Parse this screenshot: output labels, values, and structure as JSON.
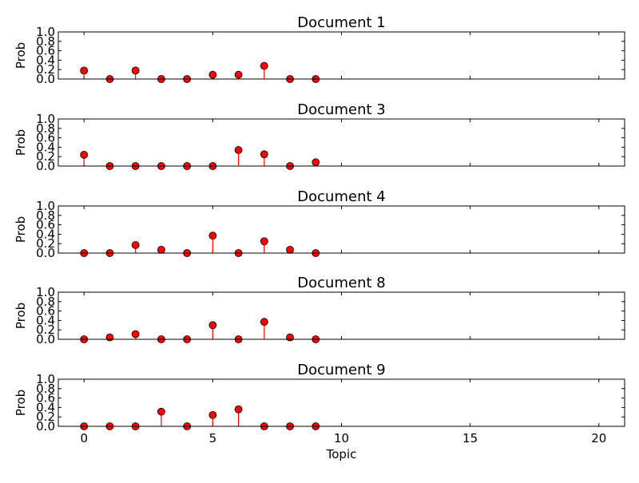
{
  "figure": {
    "xlabel": "Topic",
    "ylabel": "Prob"
  },
  "colors": {
    "marker": "#ff0000",
    "marker_edge": "#000000",
    "stem": "#ff0000",
    "axes": "#000000",
    "background": "#ffffff"
  },
  "chart_data": [
    {
      "type": "scatter",
      "style": "stem",
      "title": "Document 1",
      "ylabel": "Prob",
      "xlabel": "",
      "xlim": [
        -1,
        21
      ],
      "ylim": [
        0,
        1
      ],
      "xticks": [
        0,
        5,
        10,
        15,
        20
      ],
      "yticks": [
        "0.0",
        "0.2",
        "0.4",
        "0.6",
        "0.8",
        "1.0"
      ],
      "x": [
        0,
        1,
        2,
        3,
        4,
        5,
        6,
        7,
        8,
        9
      ],
      "y": [
        0.18,
        0.0,
        0.18,
        0.0,
        0.0,
        0.09,
        0.09,
        0.28,
        0.0,
        0.0
      ]
    },
    {
      "type": "scatter",
      "style": "stem",
      "title": "Document 3",
      "ylabel": "Prob",
      "xlabel": "",
      "xlim": [
        -1,
        21
      ],
      "ylim": [
        0,
        1
      ],
      "xticks": [
        0,
        5,
        10,
        15,
        20
      ],
      "yticks": [
        "0.0",
        "0.2",
        "0.4",
        "0.6",
        "0.8",
        "1.0"
      ],
      "x": [
        0,
        1,
        2,
        3,
        4,
        5,
        6,
        7,
        8,
        9
      ],
      "y": [
        0.24,
        0.0,
        0.0,
        0.0,
        0.0,
        0.0,
        0.34,
        0.25,
        0.0,
        0.08
      ]
    },
    {
      "type": "scatter",
      "style": "stem",
      "title": "Document 4",
      "ylabel": "Prob",
      "xlabel": "",
      "xlim": [
        -1,
        21
      ],
      "ylim": [
        0,
        1
      ],
      "xticks": [
        0,
        5,
        10,
        15,
        20
      ],
      "yticks": [
        "0.0",
        "0.2",
        "0.4",
        "0.6",
        "0.8",
        "1.0"
      ],
      "x": [
        0,
        1,
        2,
        3,
        4,
        5,
        6,
        7,
        8,
        9
      ],
      "y": [
        0.0,
        0.0,
        0.17,
        0.07,
        0.0,
        0.37,
        0.0,
        0.25,
        0.07,
        0.0
      ]
    },
    {
      "type": "scatter",
      "style": "stem",
      "title": "Document 8",
      "ylabel": "Prob",
      "xlabel": "",
      "xlim": [
        -1,
        21
      ],
      "ylim": [
        0,
        1
      ],
      "xticks": [
        0,
        5,
        10,
        15,
        20
      ],
      "yticks": [
        "0.0",
        "0.2",
        "0.4",
        "0.6",
        "0.8",
        "1.0"
      ],
      "x": [
        0,
        1,
        2,
        3,
        4,
        5,
        6,
        7,
        8,
        9
      ],
      "y": [
        0.0,
        0.04,
        0.11,
        0.0,
        0.0,
        0.3,
        0.0,
        0.37,
        0.04,
        0.0
      ]
    },
    {
      "type": "scatter",
      "style": "stem",
      "title": "Document 9",
      "ylabel": "Prob",
      "xlabel": "Topic",
      "xlim": [
        -1,
        21
      ],
      "ylim": [
        0,
        1
      ],
      "xticks": [
        0,
        5,
        10,
        15,
        20
      ],
      "yticks": [
        "0.0",
        "0.2",
        "0.4",
        "0.6",
        "0.8",
        "1.0"
      ],
      "x": [
        0,
        1,
        2,
        3,
        4,
        5,
        6,
        7,
        8,
        9
      ],
      "y": [
        0.0,
        0.0,
        0.0,
        0.31,
        0.0,
        0.24,
        0.36,
        0.0,
        0.0,
        0.0
      ]
    }
  ]
}
